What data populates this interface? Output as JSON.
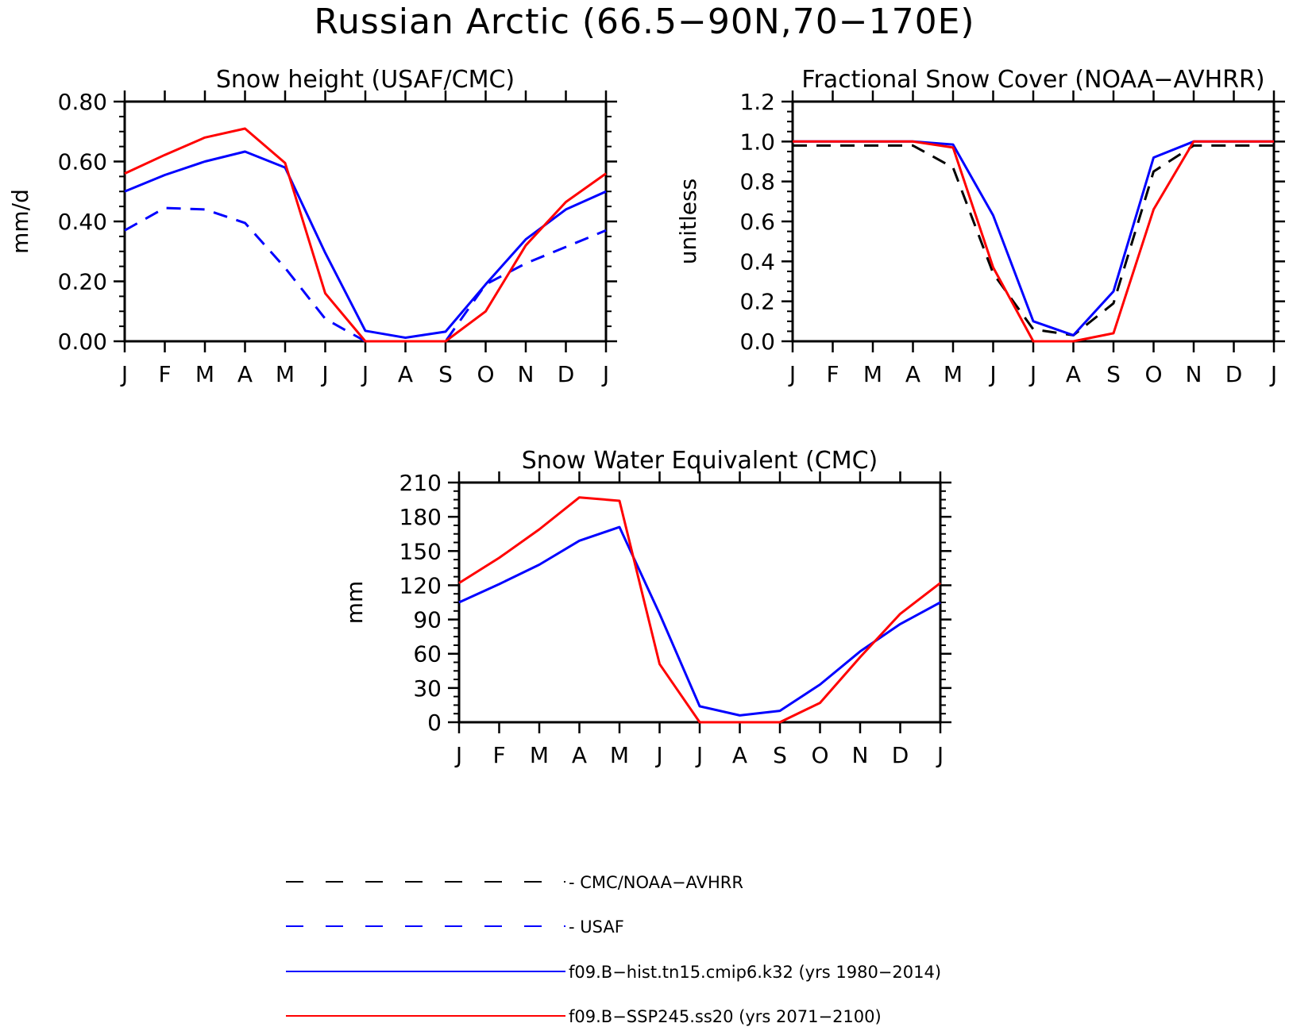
{
  "title": "Russian Arctic (66.5−90N,70−170E)",
  "legend": [
    {
      "label": "CMC/NOAA−AVHRR",
      "color": "#000000",
      "dashed": true
    },
    {
      "label": "USAF",
      "color": "#0000ff",
      "dashed": true
    },
    {
      "label": "f09.B−hist.tn15.cmip6.k32 (yrs 1980−2014)",
      "color": "#0000ff",
      "dashed": false
    },
    {
      "label": "f09.B−SSP245.ss20 (yrs 2071−2100)",
      "color": "#ff0000",
      "dashed": false
    }
  ],
  "chart_data": [
    {
      "type": "line",
      "title": "Snow height (USAF/CMC)",
      "xlabel": "",
      "ylabel": "mm/d",
      "categories": [
        "J",
        "F",
        "M",
        "A",
        "M",
        "J",
        "J",
        "A",
        "S",
        "O",
        "N",
        "D",
        "J"
      ],
      "ylim": [
        0,
        0.8
      ],
      "yticks": [
        "0.00",
        "0.20",
        "0.40",
        "0.60",
        "0.80"
      ],
      "series": [
        {
          "name": "USAF",
          "color": "#0000ff",
          "dashed": true,
          "values": [
            0.37,
            0.445,
            0.44,
            0.395,
            0.245,
            0.075,
            0.0,
            0.0,
            0.0,
            0.19,
            0.26,
            0.315,
            0.37
          ]
        },
        {
          "name": "f09.B−hist.tn15.cmip6.k32 (yrs 1980−2014)",
          "color": "#0000ff",
          "dashed": false,
          "values": [
            0.5,
            0.555,
            0.6,
            0.633,
            0.58,
            0.295,
            0.035,
            0.012,
            0.032,
            0.19,
            0.34,
            0.44,
            0.5
          ]
        },
        {
          "name": "f09.B−SSP245.ss20 (yrs 2071−2100)",
          "color": "#ff0000",
          "dashed": false,
          "values": [
            0.56,
            0.622,
            0.68,
            0.71,
            0.595,
            0.16,
            0.0,
            0.0,
            0.0,
            0.1,
            0.32,
            0.465,
            0.56
          ]
        }
      ]
    },
    {
      "type": "line",
      "title": "Fractional Snow Cover (NOAA−AVHRR)",
      "xlabel": "",
      "ylabel": "unitless",
      "categories": [
        "J",
        "F",
        "M",
        "A",
        "M",
        "J",
        "J",
        "A",
        "S",
        "O",
        "N",
        "D",
        "J"
      ],
      "ylim": [
        0,
        1.2
      ],
      "yticks": [
        "0.0",
        "0.2",
        "0.4",
        "0.6",
        "0.8",
        "1.0",
        "1.2"
      ],
      "series": [
        {
          "name": "CMC/NOAA−AVHRR",
          "color": "#000000",
          "dashed": true,
          "values": [
            0.98,
            0.98,
            0.98,
            0.98,
            0.87,
            0.34,
            0.06,
            0.03,
            0.19,
            0.85,
            0.98,
            0.98,
            0.98
          ]
        },
        {
          "name": "f09.B−hist.tn15.cmip6.k32 (yrs 1980−2014)",
          "color": "#0000ff",
          "dashed": false,
          "values": [
            1.0,
            1.0,
            1.0,
            1.0,
            0.985,
            0.63,
            0.1,
            0.03,
            0.25,
            0.92,
            1.0,
            1.0,
            1.0
          ]
        },
        {
          "name": "f09.B−SSP245.ss20 (yrs 2071−2100)",
          "color": "#ff0000",
          "dashed": false,
          "values": [
            1.0,
            1.0,
            1.0,
            1.0,
            0.97,
            0.37,
            0.0,
            0.0,
            0.04,
            0.66,
            1.0,
            1.0,
            1.0
          ]
        }
      ]
    },
    {
      "type": "line",
      "title": "Snow Water Equivalent (CMC)",
      "xlabel": "",
      "ylabel": "mm",
      "categories": [
        "J",
        "F",
        "M",
        "A",
        "M",
        "J",
        "J",
        "A",
        "S",
        "O",
        "N",
        "D",
        "J"
      ],
      "ylim": [
        0,
        210
      ],
      "yticks": [
        "0",
        "30",
        "60",
        "90",
        "120",
        "150",
        "180",
        "210"
      ],
      "series": [
        {
          "name": "f09.B−hist.tn15.cmip6.k32 (yrs 1980−2014)",
          "color": "#0000ff",
          "dashed": false,
          "values": [
            105,
            121,
            138,
            159,
            171,
            95,
            14,
            6,
            10,
            33,
            62,
            86,
            105
          ]
        },
        {
          "name": "f09.B−SSP245.ss20 (yrs 2071−2100)",
          "color": "#ff0000",
          "dashed": false,
          "values": [
            122,
            144,
            169,
            197,
            194,
            51,
            0,
            0,
            0,
            17,
            57,
            95,
            122
          ]
        }
      ]
    }
  ]
}
